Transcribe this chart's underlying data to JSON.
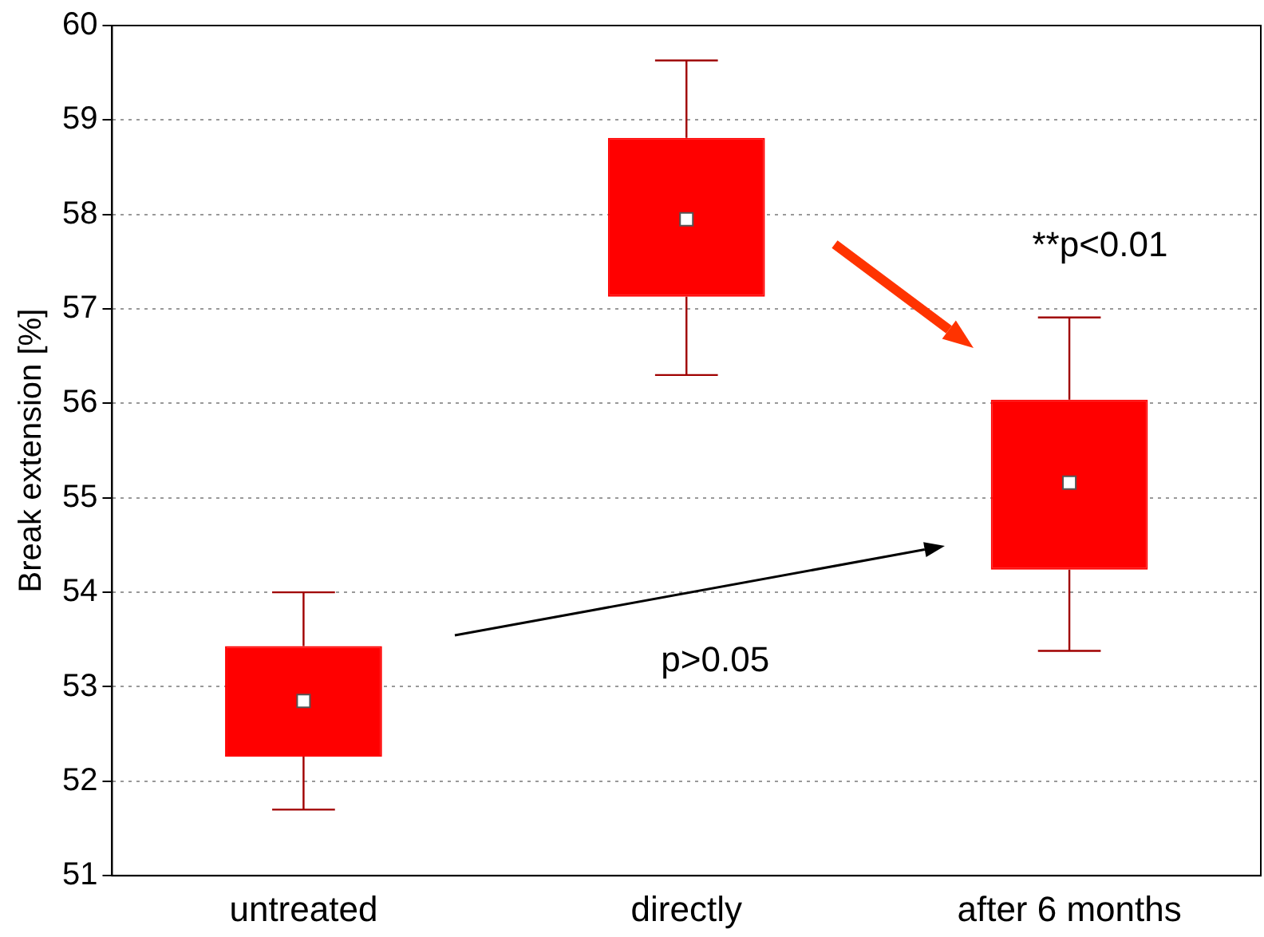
{
  "chart_data": {
    "type": "box",
    "ylabel": "Break extension [%]",
    "categories": [
      "untreated",
      "directly",
      "after 6 months"
    ],
    "color": "#ff0000",
    "boxes": [
      {
        "low": 51.7,
        "q1": 52.26,
        "median": 52.85,
        "q3": 53.43,
        "high": 54.0
      },
      {
        "low": 56.3,
        "q1": 57.13,
        "median": 57.95,
        "q3": 58.81,
        "high": 59.63
      },
      {
        "low": 53.38,
        "q1": 54.24,
        "median": 55.16,
        "q3": 56.04,
        "high": 56.91
      }
    ],
    "ylim": [
      51,
      60
    ],
    "yticks": [
      51,
      52,
      53,
      54,
      55,
      56,
      57,
      58,
      59,
      60
    ],
    "grid": "y",
    "legend": false,
    "marker": "square",
    "annotations": [
      "**p<0.01",
      "p>0.05"
    ]
  }
}
